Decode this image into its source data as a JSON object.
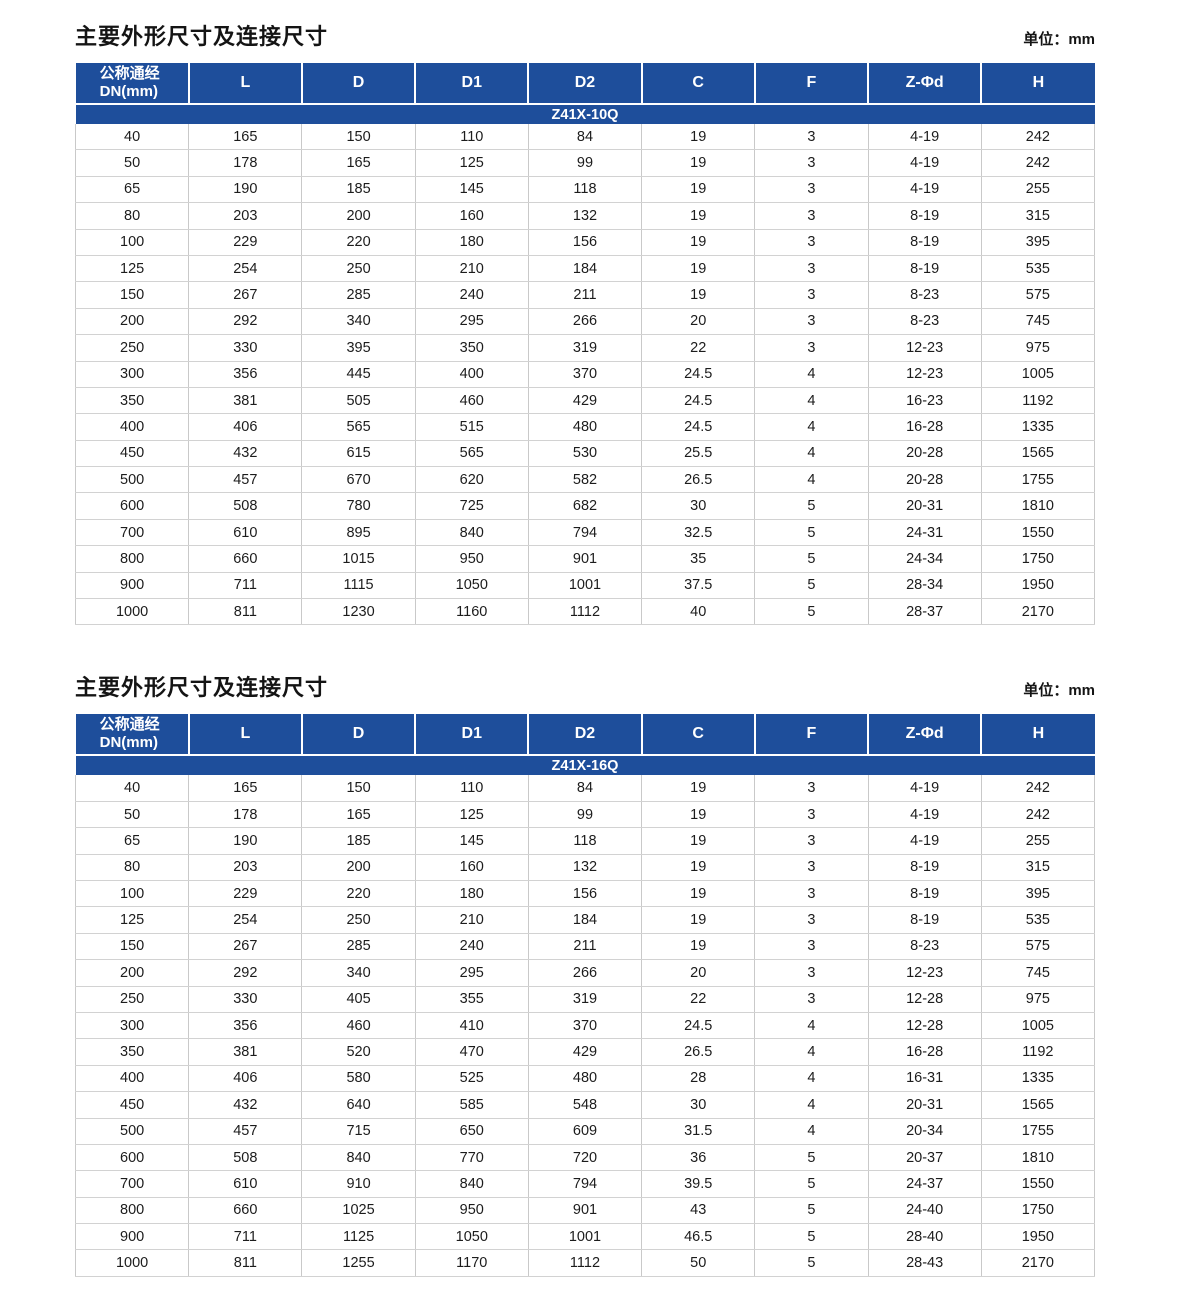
{
  "tables": [
    {
      "title": "主要外形尺寸及连接尺寸",
      "unit_label": "单位：mm",
      "model": "Z41X-10Q",
      "columns": [
        {
          "line1": "公称通经",
          "line2": "DN(mm)"
        },
        "L",
        "D",
        "D1",
        "D2",
        "C",
        "F",
        "Z-Φd",
        "H"
      ],
      "rows": [
        [
          "40",
          "165",
          "150",
          "110",
          "84",
          "19",
          "3",
          "4-19",
          "242"
        ],
        [
          "50",
          "178",
          "165",
          "125",
          "99",
          "19",
          "3",
          "4-19",
          "242"
        ],
        [
          "65",
          "190",
          "185",
          "145",
          "118",
          "19",
          "3",
          "4-19",
          "255"
        ],
        [
          "80",
          "203",
          "200",
          "160",
          "132",
          "19",
          "3",
          "8-19",
          "315"
        ],
        [
          "100",
          "229",
          "220",
          "180",
          "156",
          "19",
          "3",
          "8-19",
          "395"
        ],
        [
          "125",
          "254",
          "250",
          "210",
          "184",
          "19",
          "3",
          "8-19",
          "535"
        ],
        [
          "150",
          "267",
          "285",
          "240",
          "211",
          "19",
          "3",
          "8-23",
          "575"
        ],
        [
          "200",
          "292",
          "340",
          "295",
          "266",
          "20",
          "3",
          "8-23",
          "745"
        ],
        [
          "250",
          "330",
          "395",
          "350",
          "319",
          "22",
          "3",
          "12-23",
          "975"
        ],
        [
          "300",
          "356",
          "445",
          "400",
          "370",
          "24.5",
          "4",
          "12-23",
          "1005"
        ],
        [
          "350",
          "381",
          "505",
          "460",
          "429",
          "24.5",
          "4",
          "16-23",
          "1192"
        ],
        [
          "400",
          "406",
          "565",
          "515",
          "480",
          "24.5",
          "4",
          "16-28",
          "1335"
        ],
        [
          "450",
          "432",
          "615",
          "565",
          "530",
          "25.5",
          "4",
          "20-28",
          "1565"
        ],
        [
          "500",
          "457",
          "670",
          "620",
          "582",
          "26.5",
          "4",
          "20-28",
          "1755"
        ],
        [
          "600",
          "508",
          "780",
          "725",
          "682",
          "30",
          "5",
          "20-31",
          "1810"
        ],
        [
          "700",
          "610",
          "895",
          "840",
          "794",
          "32.5",
          "5",
          "24-31",
          "1550"
        ],
        [
          "800",
          "660",
          "1015",
          "950",
          "901",
          "35",
          "5",
          "24-34",
          "1750"
        ],
        [
          "900",
          "711",
          "1115",
          "1050",
          "1001",
          "37.5",
          "5",
          "28-34",
          "1950"
        ],
        [
          "1000",
          "811",
          "1230",
          "1160",
          "1112",
          "40",
          "5",
          "28-37",
          "2170"
        ]
      ]
    },
    {
      "title": "主要外形尺寸及连接尺寸",
      "unit_label": "单位：mm",
      "model": "Z41X-16Q",
      "columns": [
        {
          "line1": "公称通经",
          "line2": "DN(mm)"
        },
        "L",
        "D",
        "D1",
        "D2",
        "C",
        "F",
        "Z-Φd",
        "H"
      ],
      "rows": [
        [
          "40",
          "165",
          "150",
          "110",
          "84",
          "19",
          "3",
          "4-19",
          "242"
        ],
        [
          "50",
          "178",
          "165",
          "125",
          "99",
          "19",
          "3",
          "4-19",
          "242"
        ],
        [
          "65",
          "190",
          "185",
          "145",
          "118",
          "19",
          "3",
          "4-19",
          "255"
        ],
        [
          "80",
          "203",
          "200",
          "160",
          "132",
          "19",
          "3",
          "8-19",
          "315"
        ],
        [
          "100",
          "229",
          "220",
          "180",
          "156",
          "19",
          "3",
          "8-19",
          "395"
        ],
        [
          "125",
          "254",
          "250",
          "210",
          "184",
          "19",
          "3",
          "8-19",
          "535"
        ],
        [
          "150",
          "267",
          "285",
          "240",
          "211",
          "19",
          "3",
          "8-23",
          "575"
        ],
        [
          "200",
          "292",
          "340",
          "295",
          "266",
          "20",
          "3",
          "12-23",
          "745"
        ],
        [
          "250",
          "330",
          "405",
          "355",
          "319",
          "22",
          "3",
          "12-28",
          "975"
        ],
        [
          "300",
          "356",
          "460",
          "410",
          "370",
          "24.5",
          "4",
          "12-28",
          "1005"
        ],
        [
          "350",
          "381",
          "520",
          "470",
          "429",
          "26.5",
          "4",
          "16-28",
          "1192"
        ],
        [
          "400",
          "406",
          "580",
          "525",
          "480",
          "28",
          "4",
          "16-31",
          "1335"
        ],
        [
          "450",
          "432",
          "640",
          "585",
          "548",
          "30",
          "4",
          "20-31",
          "1565"
        ],
        [
          "500",
          "457",
          "715",
          "650",
          "609",
          "31.5",
          "4",
          "20-34",
          "1755"
        ],
        [
          "600",
          "508",
          "840",
          "770",
          "720",
          "36",
          "5",
          "20-37",
          "1810"
        ],
        [
          "700",
          "610",
          "910",
          "840",
          "794",
          "39.5",
          "5",
          "24-37",
          "1550"
        ],
        [
          "800",
          "660",
          "1025",
          "950",
          "901",
          "43",
          "5",
          "24-40",
          "1750"
        ],
        [
          "900",
          "711",
          "1125",
          "1050",
          "1001",
          "46.5",
          "5",
          "28-40",
          "1950"
        ],
        [
          "1000",
          "811",
          "1255",
          "1170",
          "1112",
          "50",
          "5",
          "28-43",
          "2170"
        ]
      ]
    }
  ],
  "colors": {
    "header_blue": "#1e4e9b",
    "header_text": "#ffffff",
    "body_text": "#1c1c1c",
    "grid_line": "#c9c9c9"
  }
}
